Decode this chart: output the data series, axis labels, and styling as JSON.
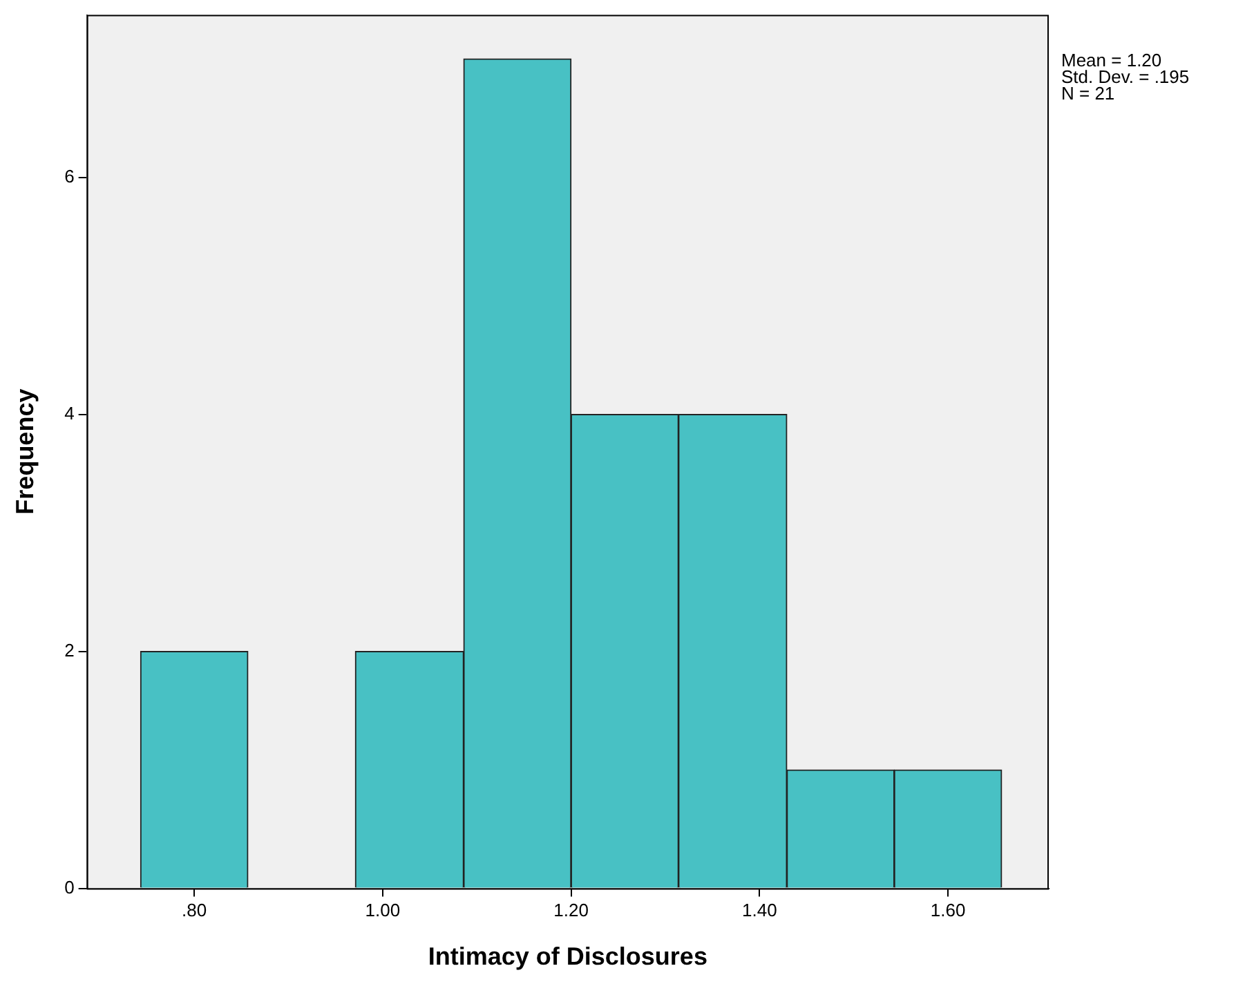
{
  "chart_data": {
    "type": "histogram",
    "xlabel": "Intimacy of Disclosures",
    "ylabel": "Frequency",
    "bins": [
      0.743,
      0.857,
      0.971,
      1.086,
      1.2,
      1.314,
      1.429,
      1.543,
      1.657
    ],
    "values": [
      2,
      0,
      2,
      7,
      4,
      4,
      1,
      1
    ],
    "color": "#48c1c4",
    "xlim": [
      0.686,
      1.707
    ],
    "xticks": [
      {
        "value": 0.8,
        "label": ".80"
      },
      {
        "value": 1.0,
        "label": "1.00"
      },
      {
        "value": 1.2,
        "label": "1.20"
      },
      {
        "value": 1.4,
        "label": "1.40"
      },
      {
        "value": 1.6,
        "label": "1.60"
      }
    ],
    "ylim": [
      0,
      7.37
    ],
    "yticks": [
      0,
      2,
      4,
      6
    ],
    "grid": false,
    "legend": false,
    "annotations": [
      "Mean = 1.20",
      "Std. Dev. = .195",
      "N = 21"
    ]
  }
}
